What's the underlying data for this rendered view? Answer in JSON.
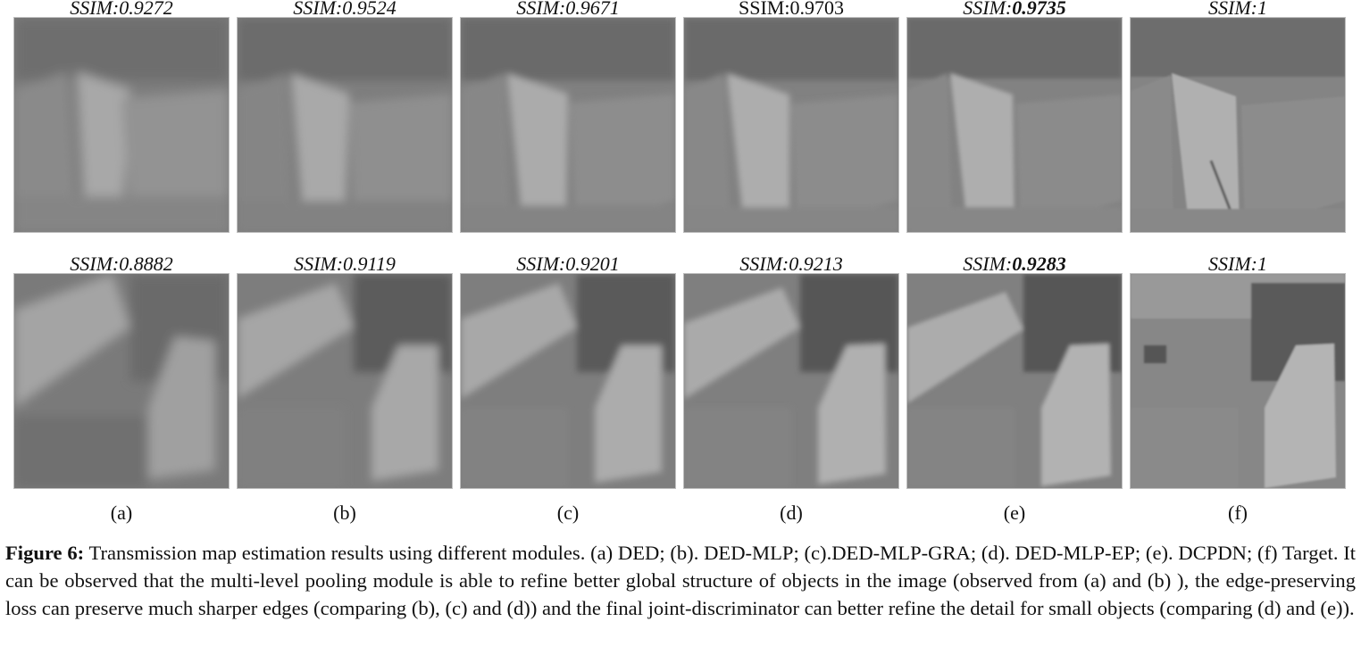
{
  "figure": {
    "columns": [
      {
        "label": "(a)",
        "row1_ssim_prefix": "SSIM:",
        "row1_ssim": "0.9272",
        "row2_ssim_prefix": "SSIM:",
        "row2_ssim": "0.8882"
      },
      {
        "label": "(b)",
        "row1_ssim_prefix": "SSIM:",
        "row1_ssim": "0.9524",
        "row2_ssim_prefix": "SSIM:",
        "row2_ssim": "0.9119"
      },
      {
        "label": "(c)",
        "row1_ssim_prefix": "SSIM:",
        "row1_ssim": "0.9671",
        "row2_ssim_prefix": "SSIM:",
        "row2_ssim": "0.9201"
      },
      {
        "label": "(d)",
        "row1_ssim_prefix": "SSIM:",
        "row1_ssim": "0.9703",
        "row2_ssim_prefix": "SSIM:",
        "row2_ssim": "0.9213"
      },
      {
        "label": "(e)",
        "row1_ssim_prefix": "SSIM:",
        "row1_ssim": "0.9735",
        "row2_ssim_prefix": "SSIM:",
        "row2_ssim": "0.9283"
      },
      {
        "label": "(f)",
        "row1_ssim_prefix": "SSIM:",
        "row1_ssim": "1",
        "row2_ssim_prefix": "SSIM:",
        "row2_ssim": "1"
      }
    ],
    "caption_label": "Figure 6:",
    "caption_text": " Transmission map estimation results using different modules. (a) DED; (b). DED-MLP; (c).DED-MLP-GRA; (d). DED-MLP-EP; (e). DCPDN; (f) Target. It can be observed that the multi-level pooling module is able to refine better global structure of objects in the image (observed from (a) and (b) ), the edge-preserving loss can preserve much sharper edges (comparing (b), (c) and (d)) and the final joint-discriminator can better refine the detail for small objects (comparing (d) and (e))."
  }
}
